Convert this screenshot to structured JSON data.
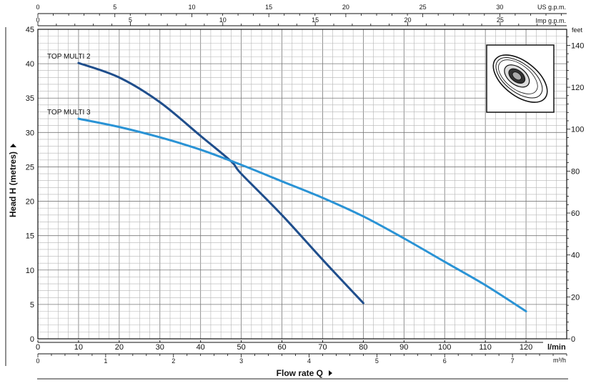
{
  "chart_data": {
    "type": "line",
    "title": "",
    "xlabel": "Flow rate Q",
    "ylabel": "Head H (metres)",
    "x_unit": "l/min",
    "xlim": [
      0,
      130
    ],
    "ylim": [
      0,
      45
    ],
    "grid": true,
    "x_ticks": [
      0,
      10,
      20,
      30,
      40,
      50,
      60,
      70,
      80,
      90,
      100,
      110,
      120
    ],
    "y_ticks": [
      0,
      5,
      10,
      15,
      20,
      25,
      30,
      35,
      40,
      45
    ],
    "secondary_axes": {
      "top_us": {
        "unit": "US g.p.m.",
        "ticks": [
          0,
          5,
          10,
          15,
          20,
          25,
          30
        ]
      },
      "top_imp": {
        "unit": "Imp g.p.m.",
        "ticks": [
          0,
          5,
          10,
          15,
          20,
          25
        ]
      },
      "bottom_m3h": {
        "unit": "m³/h",
        "ticks": [
          0,
          1,
          2,
          3,
          4,
          5,
          6,
          7
        ]
      },
      "right_feet": {
        "unit": "feet",
        "ticks": [
          0,
          20,
          40,
          60,
          80,
          100,
          120,
          140
        ]
      }
    },
    "series": [
      {
        "name": "TOP MULTI 2",
        "color": "#1f4e8c",
        "x": [
          10,
          20,
          30,
          40,
          47.5,
          50,
          60,
          70,
          80
        ],
        "y": [
          40.1,
          38.0,
          34.4,
          29.5,
          25.8,
          24.0,
          18.0,
          11.5,
          5.2
        ]
      },
      {
        "name": "TOP MULTI 3",
        "color": "#2a93d5",
        "x": [
          10,
          20,
          30,
          40,
          50,
          60,
          70,
          80,
          90,
          100,
          110,
          120
        ],
        "y": [
          32.0,
          30.8,
          29.3,
          27.5,
          25.3,
          22.9,
          20.5,
          17.8,
          14.6,
          11.2,
          7.8,
          4.0
        ]
      }
    ]
  }
}
